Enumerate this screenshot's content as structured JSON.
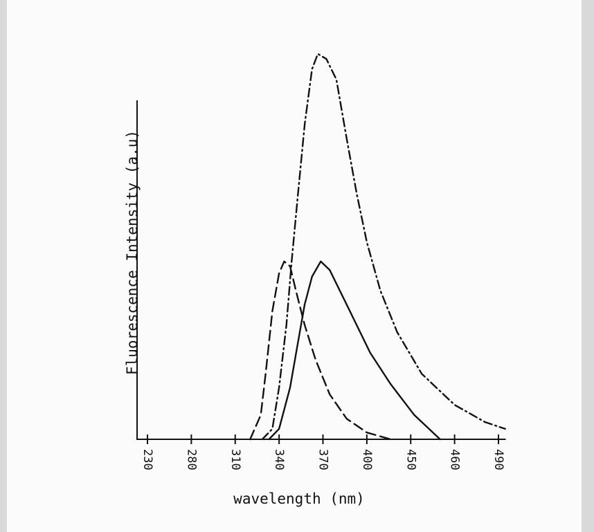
{
  "chart_data": {
    "type": "line",
    "x_label": "wavelength (nm)",
    "y_label": "Fluorescence Intensity (a.u)",
    "xlim": [
      230,
      495
    ],
    "ylim": [
      0,
      115
    ],
    "xticks": [
      230,
      280,
      310,
      340,
      370,
      400,
      450,
      460,
      490
    ],
    "series": [
      {
        "color": "#111111",
        "style": "dashed",
        "x": [
          320.2,
          327.5,
          330.8,
          335.4,
          340,
          343.5,
          347.5,
          351.5,
          357.5,
          365,
          374.6,
          386.2,
          400,
          426.9
        ],
        "values": [
          0,
          7.2,
          19.4,
          37.9,
          49.1,
          52.6,
          51.2,
          44.0,
          33.8,
          23.5,
          13.3,
          6.1,
          2.0,
          0
        ]
      },
      {
        "color": "#111111",
        "style": "solid",
        "x": [
          333.1,
          340,
          347.5,
          352.5,
          357.5,
          362.5,
          368.5,
          374.6,
          381.5,
          390.8,
          403.8,
          426.9,
          450.8,
          456.7
        ],
        "values": [
          0,
          3.1,
          15.3,
          27.6,
          39.9,
          48.1,
          52.6,
          50.1,
          44.0,
          35.8,
          25.6,
          16.4,
          7.2,
          0
        ]
      },
      {
        "color": "#111111",
        "style": "dashdot",
        "x": [
          328.5,
          335.4,
          340,
          345,
          348.5,
          352.5,
          357.5,
          362.5,
          366.5,
          372.3,
          379.2,
          386.2,
          393.1,
          400,
          415.4,
          434.6,
          452.5,
          460,
          480.8,
          494.6
        ],
        "values": [
          0,
          3.1,
          15.3,
          33.8,
          52.2,
          70.6,
          93.1,
          109.5,
          114.0,
          112.5,
          106.4,
          89.0,
          72.6,
          58.3,
          44.0,
          31.7,
          19.4,
          10.2,
          5.1,
          3.1
        ]
      }
    ]
  }
}
